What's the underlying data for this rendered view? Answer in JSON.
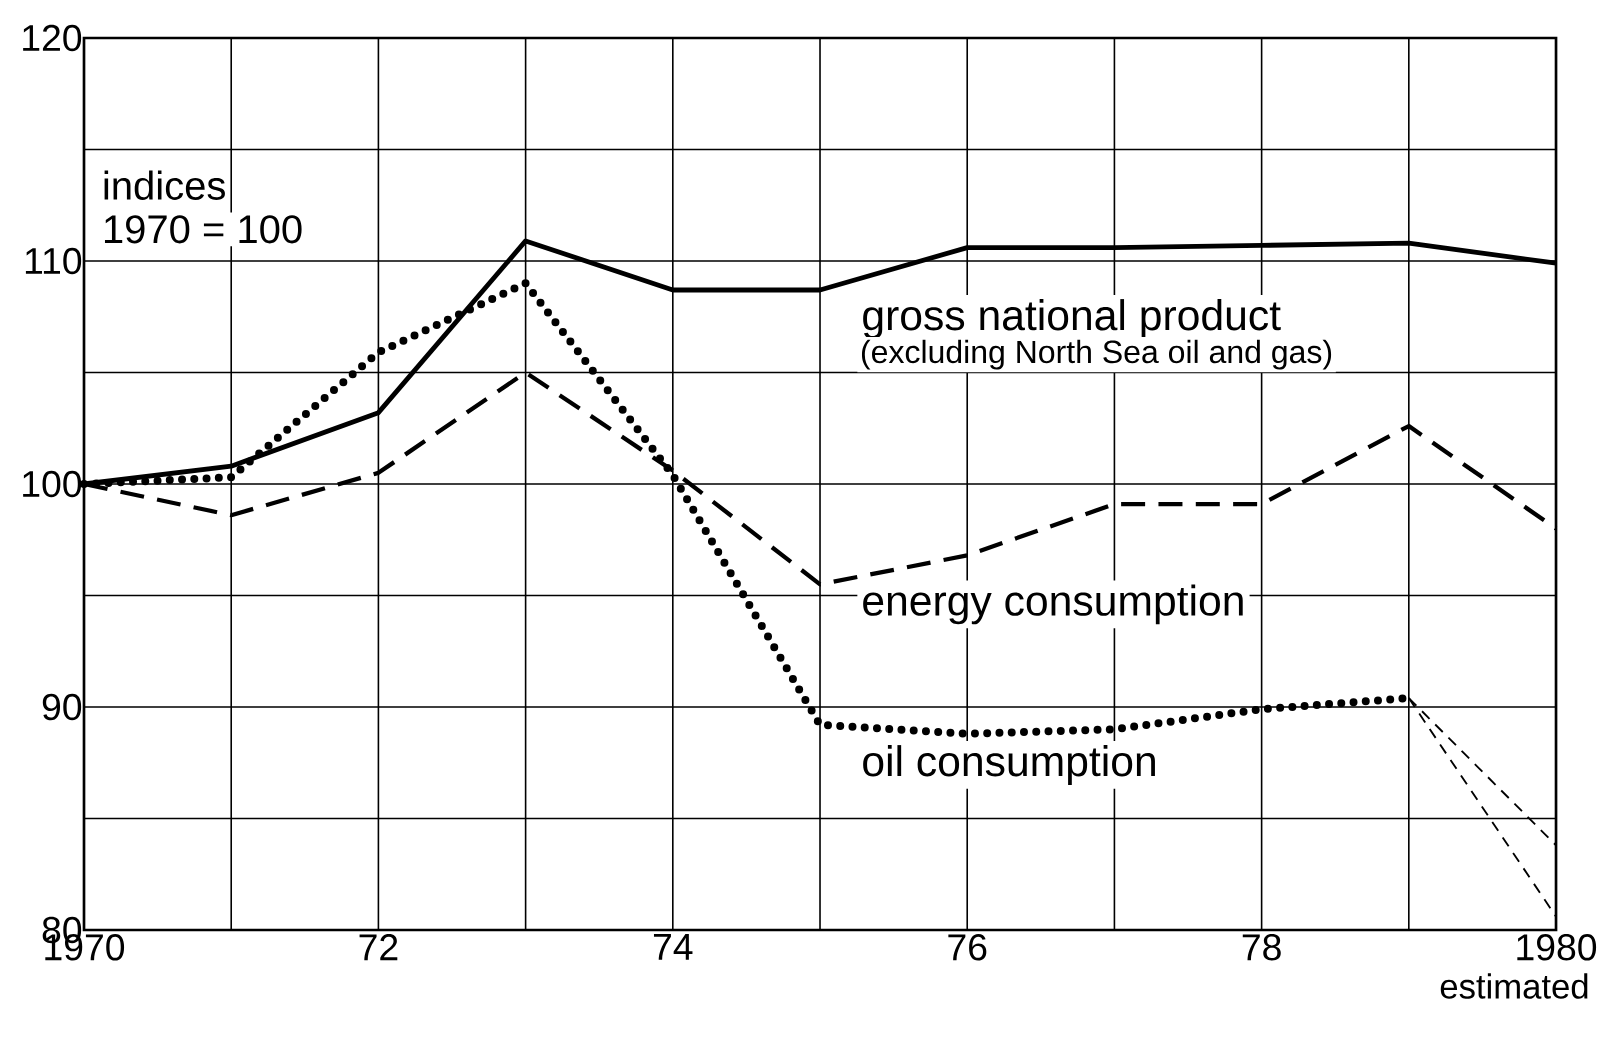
{
  "chart_data": {
    "type": "line",
    "x": [
      1970,
      1971,
      1972,
      1973,
      1974,
      1975,
      1976,
      1977,
      1978,
      1979,
      1980
    ],
    "xlim": [
      1970,
      1980
    ],
    "ylim": [
      80,
      120
    ],
    "xticks": [
      1970,
      {
        "value": 1971,
        "label": null
      },
      {
        "value": 1972,
        "label": "72"
      },
      {
        "value": 1973,
        "label": null
      },
      {
        "value": 1974,
        "label": "74"
      },
      {
        "value": 1975,
        "label": null
      },
      {
        "value": 1976,
        "label": "76"
      },
      {
        "value": 1977,
        "label": null
      },
      {
        "value": 1978,
        "label": "78"
      },
      {
        "value": 1979,
        "label": null
      },
      1980
    ],
    "yticks": [
      80,
      {
        "value": 85,
        "label": null
      },
      90,
      {
        "value": 95,
        "label": null
      },
      100,
      {
        "value": 105,
        "label": null
      },
      110,
      {
        "value": 115,
        "label": null
      },
      120
    ],
    "grid": true,
    "marker": "none",
    "series": [
      {
        "name": "gross national product",
        "color": "#000000",
        "line_style": "solid",
        "values": [
          100,
          100.8,
          103.2,
          110.9,
          108.7,
          108.7,
          110.6,
          110.6,
          110.7,
          110.8,
          109.9
        ]
      },
      {
        "name": "energy consumption",
        "color": "#000000",
        "line_style": "dashed",
        "values": [
          100,
          98.6,
          100.5,
          105,
          100.6,
          95.5,
          96.8,
          99.1,
          99.1,
          102.6,
          98.0
        ]
      },
      {
        "name": "oil consumption",
        "color": "#000000",
        "line_style": "dotted",
        "values": [
          100,
          100.3,
          105.9,
          109,
          100.4,
          89.2,
          88.8,
          89.0,
          89.9,
          90.4,
          null
        ]
      },
      {
        "color": "#000000",
        "line_style": "dashed",
        "values": [
          null,
          null,
          null,
          null,
          null,
          null,
          null,
          null,
          null,
          90.4,
          83.8
        ]
      },
      {
        "color": "#000000",
        "line_style": "dashed",
        "values": [
          null,
          null,
          null,
          null,
          null,
          null,
          null,
          null,
          null,
          90.4,
          80.6
        ]
      }
    ],
    "annotations": [
      "indices",
      "1970 = 100",
      "(excluding North Sea oil and gas)",
      "estimated"
    ]
  }
}
